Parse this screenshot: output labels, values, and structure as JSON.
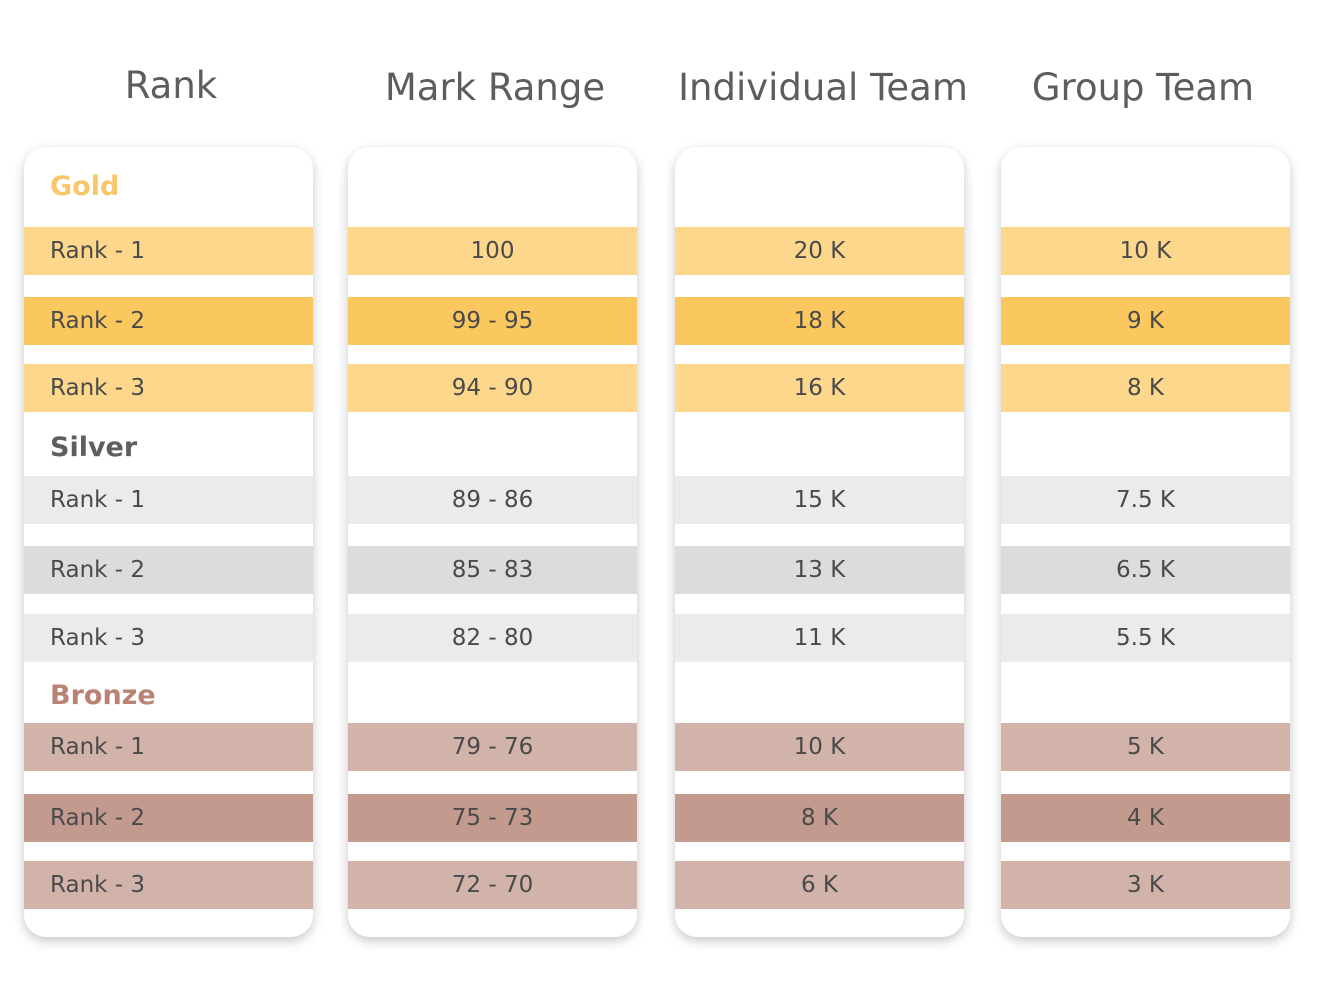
{
  "headers": [
    "Rank",
    "Mark Range",
    "Individual Team",
    "Group Team"
  ],
  "colors": {
    "gold_title": "#f9c76a",
    "silver_title": "#5e5e5e",
    "bronze_title": "#b98274",
    "gold_light": "#fdd78b",
    "gold_dark": "#fbc85f",
    "silver_light": "#ebebeb",
    "silver_dark": "#dcdcdc",
    "bronze_light": "#d2b3a9",
    "bronze_dark": "#c39a8e"
  },
  "groups": [
    {
      "title": "Gold",
      "rows": [
        {
          "rank": "Rank - 1",
          "mark": "100",
          "individual": "20 K",
          "group": "10 K"
        },
        {
          "rank": "Rank - 2",
          "mark": "99 - 95",
          "individual": "18 K",
          "group": "9 K"
        },
        {
          "rank": "Rank - 3",
          "mark": "94 - 90",
          "individual": "16 K",
          "group": "8 K"
        }
      ]
    },
    {
      "title": "Silver",
      "rows": [
        {
          "rank": "Rank - 1",
          "mark": "89 - 86",
          "individual": "15 K",
          "group": "7.5 K"
        },
        {
          "rank": "Rank - 2",
          "mark": "85 - 83",
          "individual": "13 K",
          "group": "6.5 K"
        },
        {
          "rank": "Rank - 3",
          "mark": "82 - 80",
          "individual": "11 K",
          "group": "5.5 K"
        }
      ]
    },
    {
      "title": "Bronze",
      "rows": [
        {
          "rank": "Rank - 1",
          "mark": "79 - 76",
          "individual": "10 K",
          "group": "5 K"
        },
        {
          "rank": "Rank - 2",
          "mark": "75 - 73",
          "individual": "8 K",
          "group": "4 K"
        },
        {
          "rank": "Rank - 3",
          "mark": "72 - 70",
          "individual": "6 K",
          "group": "3 K"
        }
      ]
    }
  ]
}
